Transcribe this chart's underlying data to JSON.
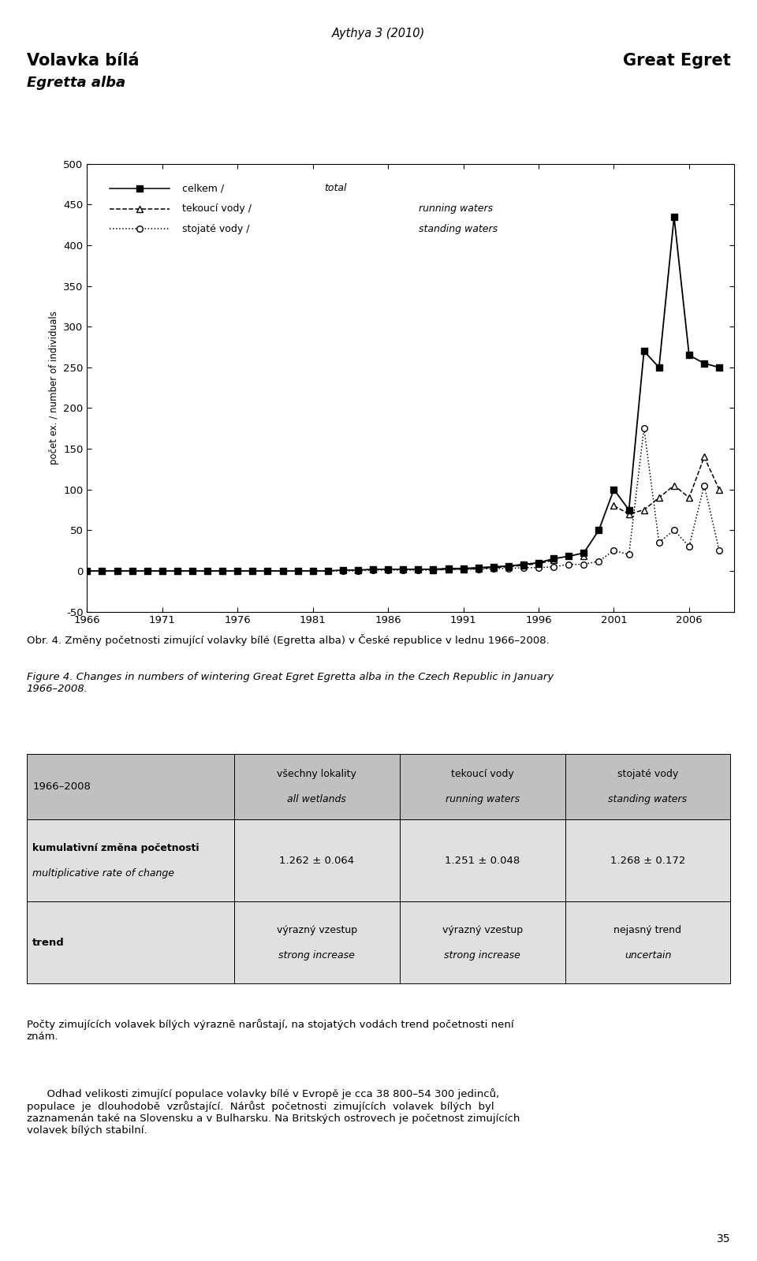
{
  "page_title": "Aythya 3 (2010)",
  "title_left_line1": "Volavka bílá",
  "title_left_line2": "Egretta alba",
  "title_right": "Great Egret",
  "ylabel": "počet ex. / number of individuals",
  "ylim": [
    -50,
    500
  ],
  "yticks": [
    -50,
    0,
    50,
    100,
    150,
    200,
    250,
    300,
    350,
    400,
    450,
    500
  ],
  "xlim": [
    1966,
    2009
  ],
  "xticks": [
    1966,
    1971,
    1976,
    1981,
    1986,
    1991,
    1996,
    2001,
    2006
  ],
  "years": [
    1966,
    1967,
    1968,
    1969,
    1970,
    1971,
    1972,
    1973,
    1974,
    1975,
    1976,
    1977,
    1978,
    1979,
    1980,
    1981,
    1982,
    1983,
    1984,
    1985,
    1986,
    1987,
    1988,
    1989,
    1990,
    1991,
    1992,
    1993,
    1994,
    1995,
    1996,
    1997,
    1998,
    1999,
    2000,
    2001,
    2002,
    2003,
    2004,
    2005,
    2006,
    2007,
    2008
  ],
  "total": [
    0,
    0,
    0,
    0,
    0,
    0,
    0,
    0,
    0,
    0,
    0,
    0,
    0,
    0,
    0,
    0,
    0,
    1,
    1,
    2,
    2,
    2,
    2,
    2,
    3,
    3,
    4,
    5,
    6,
    8,
    10,
    15,
    18,
    22,
    50,
    100,
    75,
    270,
    250,
    435,
    265,
    255,
    250
  ],
  "running": [
    null,
    null,
    null,
    null,
    null,
    null,
    null,
    null,
    null,
    null,
    null,
    null,
    null,
    null,
    null,
    null,
    null,
    null,
    null,
    null,
    null,
    null,
    null,
    1,
    2,
    2,
    3,
    4,
    5,
    7,
    9,
    13,
    null,
    18,
    null,
    80,
    70,
    75,
    90,
    105,
    90,
    140,
    100
  ],
  "standing": [
    0,
    0,
    0,
    0,
    0,
    0,
    0,
    0,
    0,
    0,
    0,
    0,
    0,
    0,
    0,
    0,
    0,
    0,
    0,
    1,
    1,
    1,
    1,
    1,
    2,
    2,
    2,
    3,
    3,
    4,
    4,
    5,
    8,
    8,
    12,
    25,
    20,
    175,
    35,
    50,
    30,
    105,
    25
  ],
  "legend_total": "celkem / total",
  "legend_running": "tekoucí vody / running waters",
  "legend_standing": "stojaté vody / standing waters",
  "page_number": "35",
  "bg_color": "#ffffff",
  "table_header_bg": "#c0c0c0",
  "table_row_bg": "#e0e0e0"
}
